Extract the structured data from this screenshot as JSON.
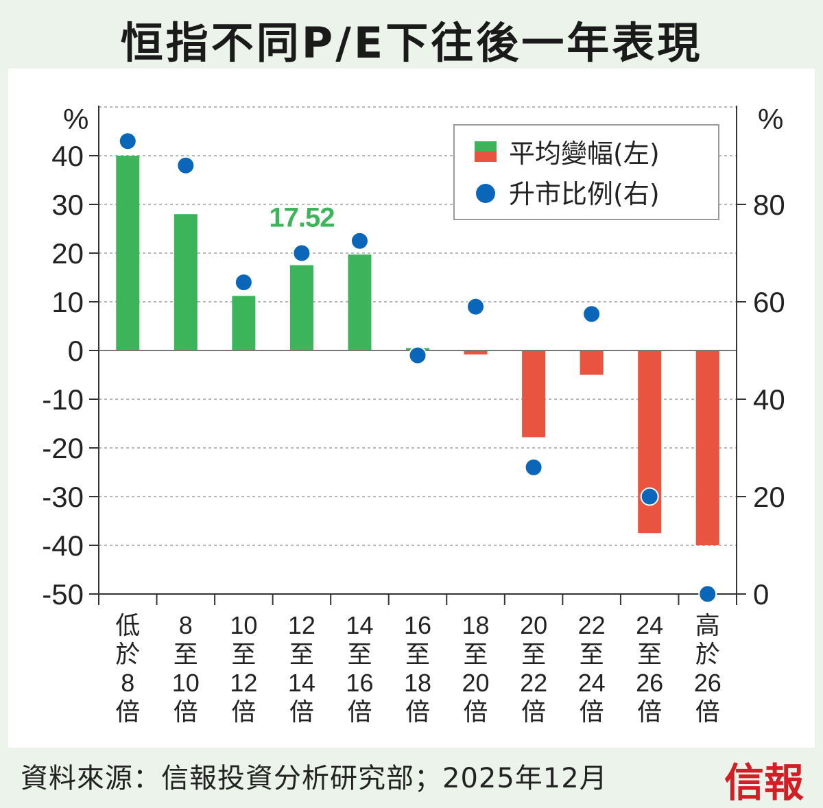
{
  "title": "恒指不同P/E下往後一年表現",
  "source": "資料來源：信報投資分析研究部；2025年12月",
  "brand": "信報",
  "colors": {
    "positive_bar": "#3cb45a",
    "negative_bar": "#e8543f",
    "dot": "#0a66b8",
    "highlight_label": "#3cb45a"
  },
  "chart_data": {
    "type": "bar",
    "title": "恒指不同P/E下往後一年表現",
    "categories": [
      [
        "低",
        "於",
        "8",
        "倍"
      ],
      [
        "8",
        "至",
        "10",
        "倍"
      ],
      [
        "10",
        "至",
        "12",
        "倍"
      ],
      [
        "12",
        "至",
        "14",
        "倍"
      ],
      [
        "14",
        "至",
        "16",
        "倍"
      ],
      [
        "16",
        "至",
        "18",
        "倍"
      ],
      [
        "18",
        "至",
        "20",
        "倍"
      ],
      [
        "20",
        "至",
        "22",
        "倍"
      ],
      [
        "22",
        "至",
        "24",
        "倍"
      ],
      [
        "24",
        "至",
        "26",
        "倍"
      ],
      [
        "高",
        "於",
        "26",
        "倍"
      ]
    ],
    "series": [
      {
        "name": "平均變幅(左)",
        "kind": "bar",
        "axis": "left",
        "values": [
          40,
          28,
          11.2,
          17.52,
          19.7,
          0.5,
          -0.8,
          -17.8,
          -5,
          -37.5,
          -40
        ]
      },
      {
        "name": "升市比例(右)",
        "kind": "dot",
        "axis": "right",
        "values": [
          93,
          88,
          64,
          70,
          72.5,
          49,
          59,
          26,
          57.5,
          20,
          0
        ]
      }
    ],
    "left_axis": {
      "unit": "%",
      "ylim": [
        -50,
        50
      ],
      "ticks": [
        40,
        30,
        20,
        10,
        0,
        -10,
        -20,
        -30,
        -40,
        -50
      ],
      "tick_labels": [
        "40",
        "30",
        "20",
        "10",
        "0",
        "-10",
        "-20",
        "-30",
        "-40",
        "-50"
      ]
    },
    "right_axis": {
      "unit": "%",
      "ylim": [
        0,
        100
      ],
      "ticks": [
        80,
        60,
        40,
        20,
        0
      ],
      "tick_labels": [
        "80",
        "60",
        "40",
        "20",
        "0"
      ]
    },
    "annotation": {
      "category_index": 3,
      "text": "17.52"
    },
    "legend": {
      "position": "top-right"
    }
  }
}
